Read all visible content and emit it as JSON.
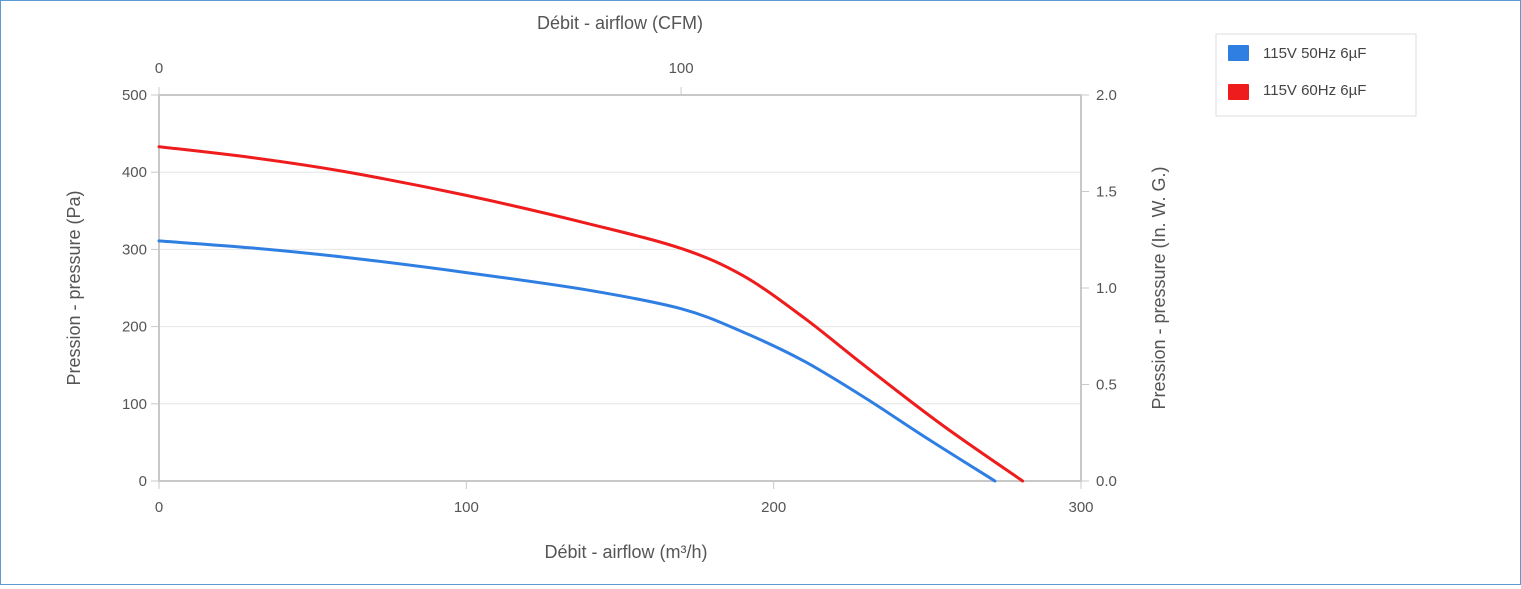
{
  "chart_data": {
    "type": "line",
    "x_bottom": {
      "label": "Débit - airflow (m³/h)",
      "range": [
        0,
        300
      ],
      "ticks": [
        0,
        100,
        200,
        300
      ]
    },
    "x_top": {
      "label": "Débit - airflow (CFM)",
      "range": [
        0,
        176.6
      ],
      "ticks": [
        0,
        100
      ]
    },
    "y_left": {
      "label": "Pression - pressure (Pa)",
      "range": [
        0,
        500
      ],
      "ticks": [
        0,
        100,
        200,
        300,
        400,
        500
      ]
    },
    "y_right": {
      "label": "Pression - pressure (In. W. G.)",
      "range": [
        0,
        2.0
      ],
      "ticks": [
        "0.0",
        "0.5",
        "1.0",
        "1.5",
        "2.0"
      ]
    },
    "grid": true,
    "legend_position": "top-right",
    "series": [
      {
        "name": "115V 50Hz 6µF",
        "color": "#2f7fe3",
        "points": [
          [
            0,
            311
          ],
          [
            30,
            302
          ],
          [
            60,
            290
          ],
          [
            100,
            270
          ],
          [
            140,
            247
          ],
          [
            170,
            223
          ],
          [
            190,
            193
          ],
          [
            210,
            155
          ],
          [
            230,
            107
          ],
          [
            250,
            55
          ],
          [
            272,
            0
          ]
        ]
      },
      {
        "name": "115V 60Hz 6µF",
        "color": "#ee1c1c",
        "points": [
          [
            0,
            433
          ],
          [
            30,
            419
          ],
          [
            60,
            401
          ],
          [
            100,
            370
          ],
          [
            140,
            333
          ],
          [
            170,
            301
          ],
          [
            190,
            266
          ],
          [
            210,
            211
          ],
          [
            230,
            148
          ],
          [
            255,
            72
          ],
          [
            281,
            0
          ]
        ]
      }
    ]
  }
}
